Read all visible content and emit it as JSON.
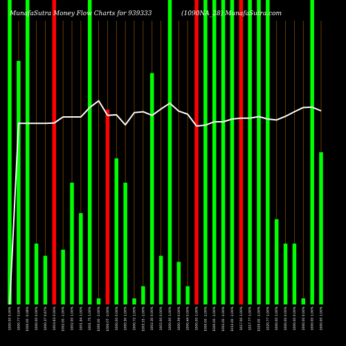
{
  "header": {
    "title": "MunafaSutra  Money Flow  Charts for 939333",
    "subtitle": "(1090NA_28)  MunafaSutra.com"
  },
  "colors": {
    "background": "#000000",
    "up": "#00ff00",
    "down": "#ff0000",
    "grid": "#8a4a00",
    "line": "#ffffff"
  },
  "chart_data": {
    "type": "bar",
    "title": "MunafaSutra  Money Flow  Charts for 939333",
    "subtitle": "(1090NA_28)  MunafaSutra.com",
    "categories": [
      "1000.00 5.00%",
      "1000.77 0.00%",
      "1000.00 -0.08%",
      "1000.00 0.00%",
      "1000.37 0.67%",
      "1003.63 0.00%",
      "1002.00 -1.00%",
      "1002.00 1.00%",
      "1001.94 1.00%",
      "1001.75 1.00%",
      "1000.00 -1.00%",
      "1000.0T -1.00%",
      "1000.00 0.00%",
      "1000.50 1.00%",
      "1000.72 1.00%",
      "1003.33 -1.00%",
      "1002.30 0.00%",
      "1002.00 0.00%",
      "1000.00 1.00%",
      "1000.59 0.00%",
      "1000.44 0.00%",
      "1000.00 1.00%",
      "1000.00 -1.00%",
      "1000.00 -1.00%",
      "1001.00 -1.00%",
      "1011.00 -1.00%",
      "1017.00 1.00%",
      "1017.77 1.00%",
      "1020.00 -1.00%",
      "1020.77 1.00%",
      "1000.00 1.00%",
      "1000.00 0.00%",
      "1000.00 0.00%",
      "1000.00 0.00%",
      "1000.00 1.00%",
      "1000.00 1.00%"
    ],
    "bars": [
      {
        "value": 100,
        "color": "green"
      },
      {
        "value": 80,
        "color": "green"
      },
      {
        "value": 100,
        "color": "green"
      },
      {
        "value": 20,
        "color": "green"
      },
      {
        "value": 16,
        "color": "green"
      },
      {
        "value": 100,
        "color": "red"
      },
      {
        "value": 18,
        "color": "green"
      },
      {
        "value": 40,
        "color": "green"
      },
      {
        "value": 30,
        "color": "green"
      },
      {
        "value": 100,
        "color": "green"
      },
      {
        "value": 2,
        "color": "green"
      },
      {
        "value": 64,
        "color": "red"
      },
      {
        "value": 48,
        "color": "green"
      },
      {
        "value": 40,
        "color": "green"
      },
      {
        "value": 2,
        "color": "green"
      },
      {
        "value": 6,
        "color": "green"
      },
      {
        "value": 76,
        "color": "green"
      },
      {
        "value": 16,
        "color": "green"
      },
      {
        "value": 100,
        "color": "green"
      },
      {
        "value": 14,
        "color": "green"
      },
      {
        "value": 6,
        "color": "green"
      },
      {
        "value": 100,
        "color": "red"
      },
      {
        "value": 100,
        "color": "green"
      },
      {
        "value": 100,
        "color": "green"
      },
      {
        "value": 100,
        "color": "green"
      },
      {
        "value": 100,
        "color": "green"
      },
      {
        "value": 100,
        "color": "red"
      },
      {
        "value": 100,
        "color": "green"
      },
      {
        "value": 100,
        "color": "green"
      },
      {
        "value": 100,
        "color": "green"
      },
      {
        "value": 28,
        "color": "green"
      },
      {
        "value": 20,
        "color": "green"
      },
      {
        "value": 20,
        "color": "green"
      },
      {
        "value": 2,
        "color": "green"
      },
      {
        "value": 100,
        "color": "green"
      },
      {
        "value": 50,
        "color": "green"
      }
    ],
    "line": [
      0,
      59.5,
      59.5,
      59.5,
      59.5,
      59.6,
      61.6,
      61.6,
      61.6,
      64.7,
      66.9,
      62.1,
      62.3,
      59.0,
      63.0,
      63.3,
      62.1,
      64.2,
      66.1,
      63.5,
      62.5,
      58.6,
      58.9,
      60.0,
      60.0,
      60.9,
      61.2,
      61.2,
      61.7,
      60.9,
      60.6,
      61.8,
      63.3,
      64.7,
      64.8,
      63.6
    ],
    "ylim": [
      0,
      100
    ],
    "grid": true
  }
}
